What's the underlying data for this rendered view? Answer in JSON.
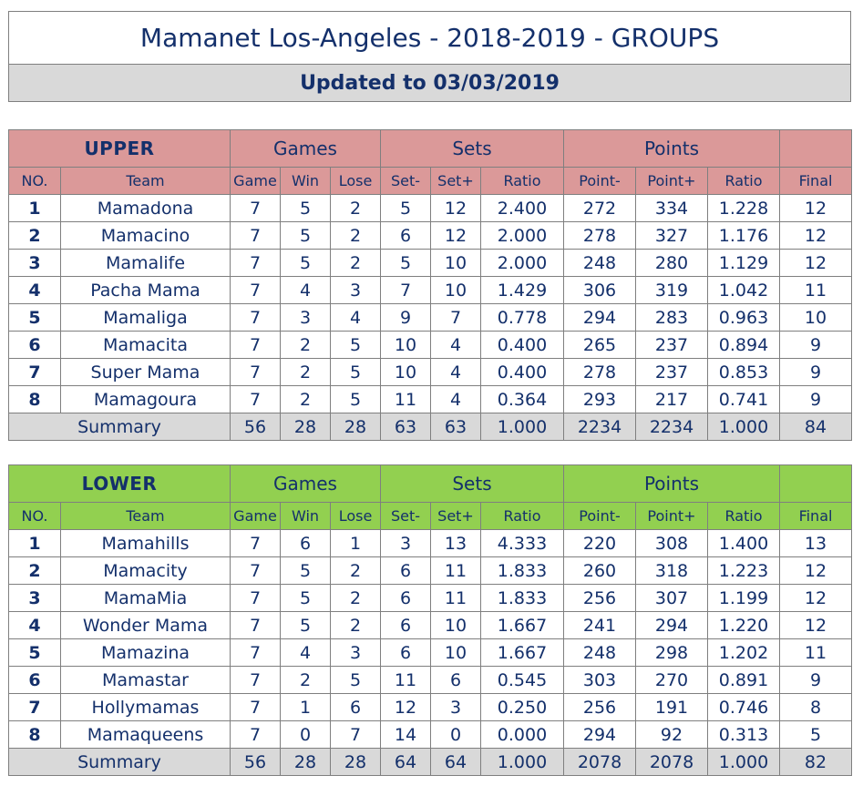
{
  "title": "Mamanet Los-Angeles - 2018-2019 - GROUPS",
  "updated": "Updated to 03/03/2019",
  "colors": {
    "upper_header": "#db9999",
    "lower_header": "#92d050",
    "summary_bg": "#d9d9d9",
    "text": "#14306b"
  },
  "headers": {
    "games": "Games",
    "sets": "Sets",
    "points": "Points",
    "no": "NO.",
    "team": "Team",
    "game": "Game",
    "win": "Win",
    "lose": "Lose",
    "set_minus": "Set-",
    "set_plus": "Set+",
    "ratio": "Ratio",
    "point_minus": "Point-",
    "point_plus": "Point+",
    "final": "Final"
  },
  "upper": {
    "name": "UPPER",
    "rows": [
      {
        "no": "1",
        "team": "Mamadona",
        "game": "7",
        "win": "5",
        "lose": "2",
        "set_minus": "5",
        "set_plus": "12",
        "set_ratio": "2.400",
        "point_minus": "272",
        "point_plus": "334",
        "point_ratio": "1.228",
        "final": "12"
      },
      {
        "no": "2",
        "team": "Mamacino",
        "game": "7",
        "win": "5",
        "lose": "2",
        "set_minus": "6",
        "set_plus": "12",
        "set_ratio": "2.000",
        "point_minus": "278",
        "point_plus": "327",
        "point_ratio": "1.176",
        "final": "12"
      },
      {
        "no": "3",
        "team": "Mamalife",
        "game": "7",
        "win": "5",
        "lose": "2",
        "set_minus": "5",
        "set_plus": "10",
        "set_ratio": "2.000",
        "point_minus": "248",
        "point_plus": "280",
        "point_ratio": "1.129",
        "final": "12"
      },
      {
        "no": "4",
        "team": "Pacha Mama",
        "game": "7",
        "win": "4",
        "lose": "3",
        "set_minus": "7",
        "set_plus": "10",
        "set_ratio": "1.429",
        "point_minus": "306",
        "point_plus": "319",
        "point_ratio": "1.042",
        "final": "11"
      },
      {
        "no": "5",
        "team": "Mamaliga",
        "game": "7",
        "win": "3",
        "lose": "4",
        "set_minus": "9",
        "set_plus": "7",
        "set_ratio": "0.778",
        "point_minus": "294",
        "point_plus": "283",
        "point_ratio": "0.963",
        "final": "10"
      },
      {
        "no": "6",
        "team": "Mamacita",
        "game": "7",
        "win": "2",
        "lose": "5",
        "set_minus": "10",
        "set_plus": "4",
        "set_ratio": "0.400",
        "point_minus": "265",
        "point_plus": "237",
        "point_ratio": "0.894",
        "final": "9"
      },
      {
        "no": "7",
        "team": "Super Mama",
        "game": "7",
        "win": "2",
        "lose": "5",
        "set_minus": "10",
        "set_plus": "4",
        "set_ratio": "0.400",
        "point_minus": "278",
        "point_plus": "237",
        "point_ratio": "0.853",
        "final": "9"
      },
      {
        "no": "8",
        "team": "Mamagoura",
        "game": "7",
        "win": "2",
        "lose": "5",
        "set_minus": "11",
        "set_plus": "4",
        "set_ratio": "0.364",
        "point_minus": "293",
        "point_plus": "217",
        "point_ratio": "0.741",
        "final": "9"
      }
    ],
    "summary": {
      "label": "Summary",
      "game": "56",
      "win": "28",
      "lose": "28",
      "set_minus": "63",
      "set_plus": "63",
      "set_ratio": "1.000",
      "point_minus": "2234",
      "point_plus": "2234",
      "point_ratio": "1.000",
      "final": "84"
    }
  },
  "lower": {
    "name": "LOWER",
    "rows": [
      {
        "no": "1",
        "team": "Mamahills",
        "game": "7",
        "win": "6",
        "lose": "1",
        "set_minus": "3",
        "set_plus": "13",
        "set_ratio": "4.333",
        "point_minus": "220",
        "point_plus": "308",
        "point_ratio": "1.400",
        "final": "13"
      },
      {
        "no": "2",
        "team": "Mamacity",
        "game": "7",
        "win": "5",
        "lose": "2",
        "set_minus": "6",
        "set_plus": "11",
        "set_ratio": "1.833",
        "point_minus": "260",
        "point_plus": "318",
        "point_ratio": "1.223",
        "final": "12"
      },
      {
        "no": "3",
        "team": "MamaMia",
        "game": "7",
        "win": "5",
        "lose": "2",
        "set_minus": "6",
        "set_plus": "11",
        "set_ratio": "1.833",
        "point_minus": "256",
        "point_plus": "307",
        "point_ratio": "1.199",
        "final": "12"
      },
      {
        "no": "4",
        "team": "Wonder Mama",
        "game": "7",
        "win": "5",
        "lose": "2",
        "set_minus": "6",
        "set_plus": "10",
        "set_ratio": "1.667",
        "point_minus": "241",
        "point_plus": "294",
        "point_ratio": "1.220",
        "final": "12"
      },
      {
        "no": "5",
        "team": "Mamazina",
        "game": "7",
        "win": "4",
        "lose": "3",
        "set_minus": "6",
        "set_plus": "10",
        "set_ratio": "1.667",
        "point_minus": "248",
        "point_plus": "298",
        "point_ratio": "1.202",
        "final": "11"
      },
      {
        "no": "6",
        "team": "Mamastar",
        "game": "7",
        "win": "2",
        "lose": "5",
        "set_minus": "11",
        "set_plus": "6",
        "set_ratio": "0.545",
        "point_minus": "303",
        "point_plus": "270",
        "point_ratio": "0.891",
        "final": "9"
      },
      {
        "no": "7",
        "team": "Hollymamas",
        "game": "7",
        "win": "1",
        "lose": "6",
        "set_minus": "12",
        "set_plus": "3",
        "set_ratio": "0.250",
        "point_minus": "256",
        "point_plus": "191",
        "point_ratio": "0.746",
        "final": "8"
      },
      {
        "no": "8",
        "team": "Mamaqueens",
        "game": "7",
        "win": "0",
        "lose": "7",
        "set_minus": "14",
        "set_plus": "0",
        "set_ratio": "0.000",
        "point_minus": "294",
        "point_plus": "92",
        "point_ratio": "0.313",
        "final": "5"
      }
    ],
    "summary": {
      "label": "Summary",
      "game": "56",
      "win": "28",
      "lose": "28",
      "set_minus": "64",
      "set_plus": "64",
      "set_ratio": "1.000",
      "point_minus": "2078",
      "point_plus": "2078",
      "point_ratio": "1.000",
      "final": "82"
    }
  }
}
